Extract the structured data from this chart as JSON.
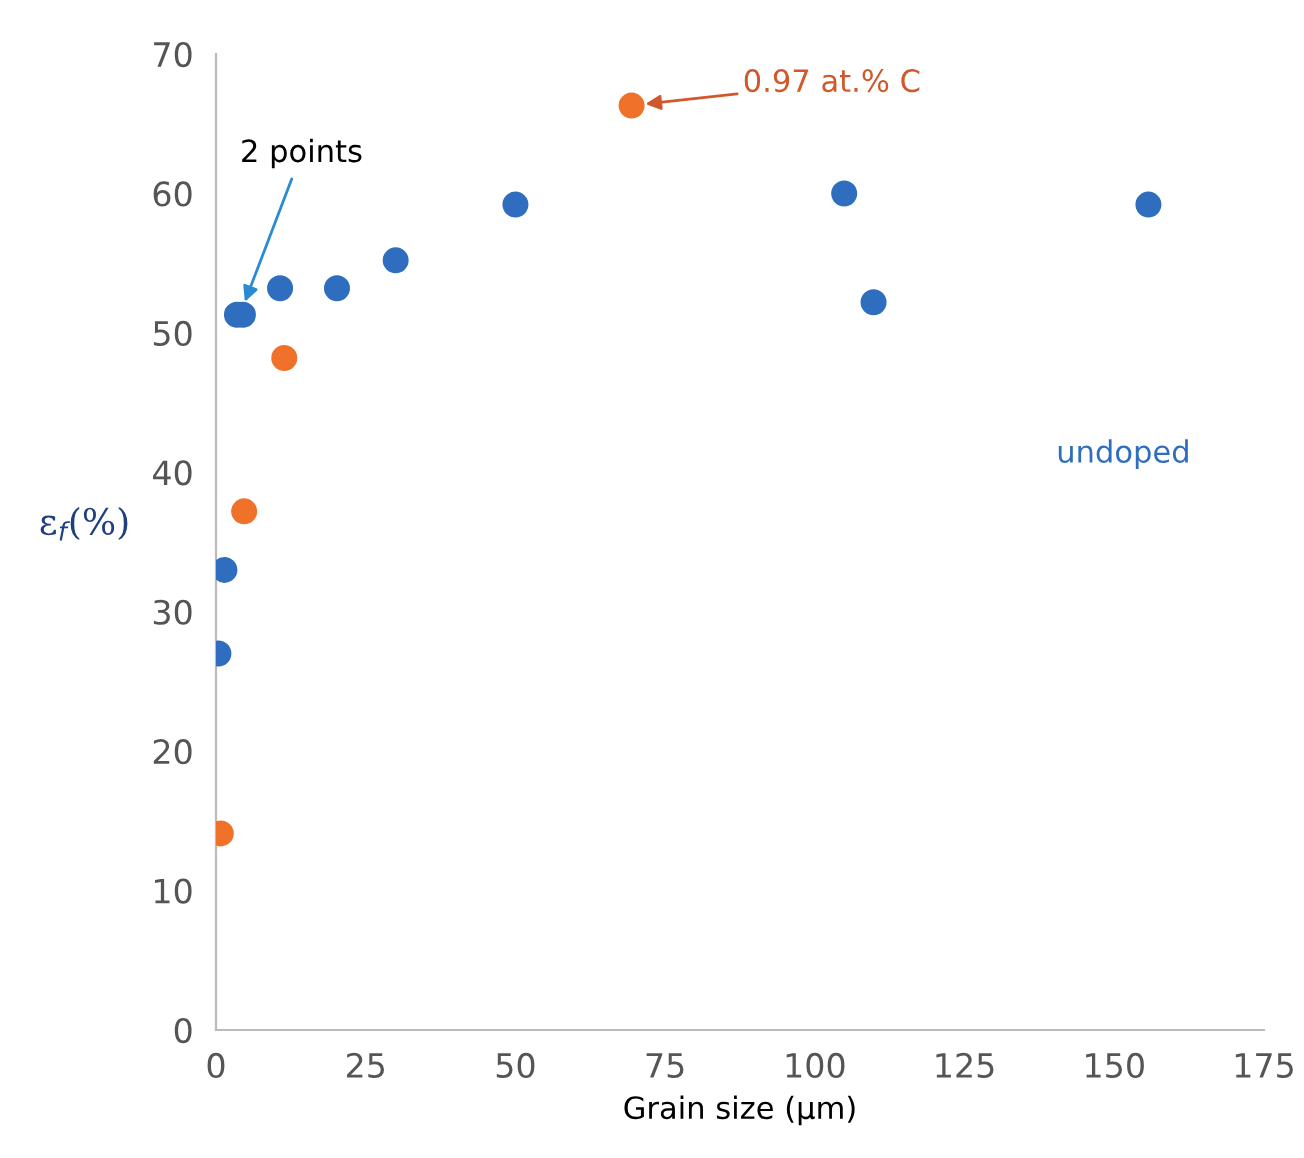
{
  "chart_data": {
    "type": "scatter",
    "xlabel": "Grain size (μm)",
    "ylabel": "ε$_{f}$(%)",
    "xlim": [
      0,
      175
    ],
    "xticks": [
      0,
      25,
      50,
      75,
      100,
      125,
      150,
      175
    ],
    "ylim": [
      0,
      70
    ],
    "yticks": [
      0,
      10,
      20,
      30,
      40,
      50,
      60,
      70
    ],
    "grid": false,
    "marker": "circle",
    "series": [
      {
        "name": "undoped",
        "color": "#2f6ebf",
        "x": [
          0.4,
          1.4,
          3.5,
          4.5,
          10.7,
          20.2,
          30,
          50,
          104.9,
          109.8,
          155.7
        ],
        "values": [
          27,
          33,
          51.3,
          51.3,
          53.2,
          53.2,
          55.2,
          59.2,
          60,
          52.2,
          59.2
        ]
      },
      {
        "name": "0.97 at.% C",
        "color": "#f0712a",
        "x": [
          0.8,
          4.7,
          11.4,
          69.4
        ],
        "values": [
          14.1,
          37.2,
          48.2,
          66.3
        ]
      }
    ],
    "annotations": [
      {
        "text": "2 points",
        "x": 4,
        "y": 51.3
      }
    ]
  }
}
